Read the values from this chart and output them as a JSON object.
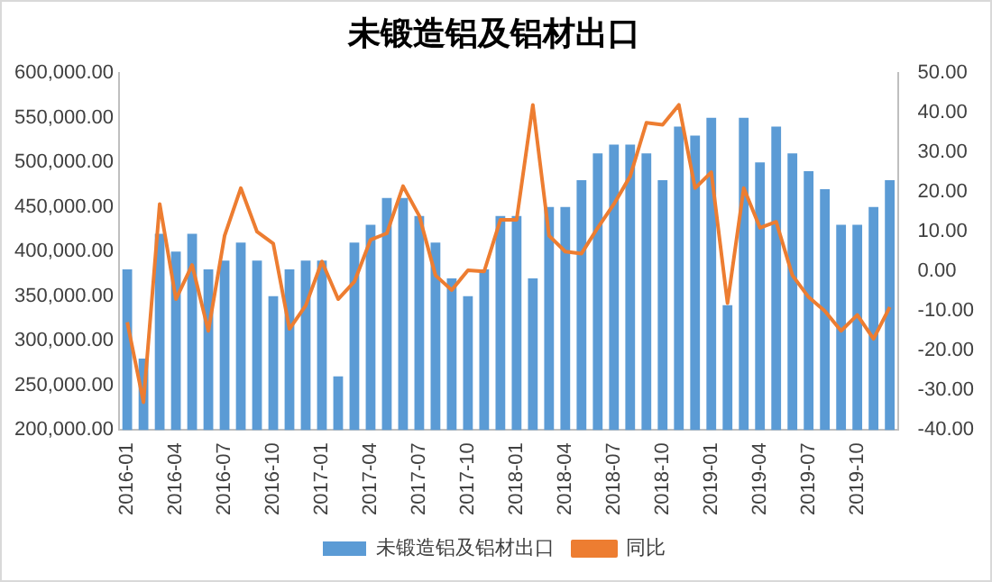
{
  "chart_data": {
    "type": "bar",
    "title": "未锻造铝及铝材出口",
    "categories": [
      "2016-01",
      null,
      null,
      "2016-04",
      null,
      null,
      "2016-07",
      null,
      null,
      "2016-10",
      null,
      null,
      "2017-01",
      null,
      null,
      "2017-04",
      null,
      null,
      "2017-07",
      null,
      null,
      "2017-10",
      null,
      null,
      "2018-01",
      null,
      null,
      "2018-04",
      null,
      null,
      "2018-07",
      null,
      null,
      "2018-10",
      null,
      null,
      "2019-01",
      null,
      null,
      "2019-04",
      null,
      null,
      "2019-07",
      null,
      null,
      "2019-10",
      null,
      null
    ],
    "series": [
      {
        "name": "未锻造铝及铝材出口",
        "color": "#5b9bd5",
        "values": [
          380000,
          280000,
          420000,
          400000,
          420000,
          380000,
          390000,
          410000,
          390000,
          350000,
          380000,
          390000,
          390000,
          260000,
          410000,
          430000,
          460000,
          460000,
          440000,
          410000,
          370000,
          350000,
          380000,
          440000,
          440000,
          370000,
          450000,
          450000,
          480000,
          510000,
          520000,
          520000,
          510000,
          480000,
          540000,
          530000,
          550000,
          340000,
          550000,
          500000,
          540000,
          510000,
          490000,
          470000,
          430000,
          430000,
          450000,
          480000
        ]
      },
      {
        "name": "同比",
        "type": "line",
        "axis": "y2",
        "color": "#ed7d31",
        "values": [
          -12.8,
          -33,
          17,
          -7,
          1.6,
          -15,
          9,
          21,
          10,
          7,
          -14.5,
          -8.6,
          2.5,
          -7,
          -2.6,
          8,
          9.6,
          21.5,
          14,
          -1,
          -4.7,
          0.3,
          0,
          13,
          13,
          42,
          9,
          5,
          4.5,
          11,
          17,
          24,
          37.5,
          37,
          42,
          21,
          25,
          -8,
          21,
          11,
          12.5,
          -1,
          -6.5,
          -10,
          -15,
          -11,
          -17,
          -9
        ]
      }
    ],
    "ylim": [
      200000,
      600000
    ],
    "yticks": [
      {
        "value": 200000,
        "label": "200,000.00"
      },
      {
        "value": 250000,
        "label": "250,000.00"
      },
      {
        "value": 300000,
        "label": "300,000.00"
      },
      {
        "value": 350000,
        "label": "350,000.00"
      },
      {
        "value": 400000,
        "label": "400,000.00"
      },
      {
        "value": 450000,
        "label": "450,000.00"
      },
      {
        "value": 500000,
        "label": "500,000.00"
      },
      {
        "value": 550000,
        "label": "550,000.00"
      },
      {
        "value": 600000,
        "label": "600,000.00"
      }
    ],
    "y2lim": [
      -40,
      50
    ],
    "y2ticks": [
      {
        "value": -40,
        "label": "-40.00"
      },
      {
        "value": -30,
        "label": "-30.00"
      },
      {
        "value": -20,
        "label": "-20.00"
      },
      {
        "value": -10,
        "label": "-10.00"
      },
      {
        "value": 0,
        "label": "0.00"
      },
      {
        "value": 10,
        "label": "10.00"
      },
      {
        "value": 20,
        "label": "20.00"
      },
      {
        "value": 30,
        "label": "30.00"
      },
      {
        "value": 40,
        "label": "40.00"
      },
      {
        "value": 50,
        "label": "50.00"
      }
    ],
    "grid": false,
    "legend": "bottom",
    "marker": "none",
    "line_style": "solid"
  }
}
